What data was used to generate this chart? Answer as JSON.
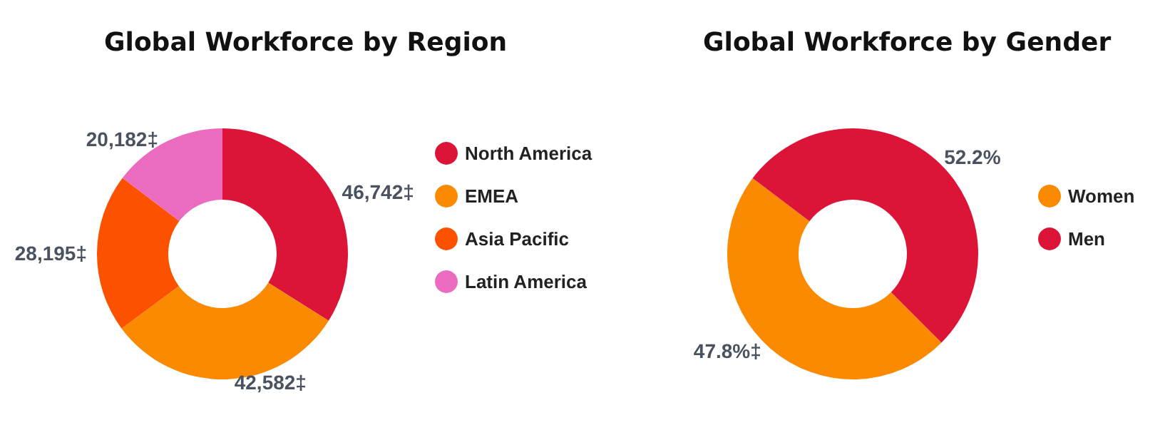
{
  "chart_data": [
    {
      "type": "donut",
      "title": "Global Workforce by Region",
      "categories": [
        "North America",
        "EMEA",
        "Asia Pacific",
        "Latin America"
      ],
      "values": [
        46742,
        42582,
        28195,
        20182
      ],
      "colors": [
        "#dc1538",
        "#fb8a00",
        "#fc5200",
        "#eb6cbf"
      ],
      "value_labels": [
        "46,742‡",
        "42,582‡",
        "28,195‡",
        "20,182‡"
      ],
      "legend": "right"
    },
    {
      "type": "donut",
      "title": "Global Workforce by Gender",
      "categories": [
        "Women",
        "Men"
      ],
      "values": [
        47.8,
        52.2
      ],
      "colors": [
        "#fb8a00",
        "#dc1538"
      ],
      "value_labels": [
        "47.8%‡",
        "52.2%"
      ],
      "legend": "right"
    }
  ]
}
